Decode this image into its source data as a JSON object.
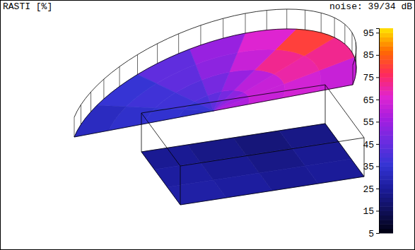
{
  "chart_data": {
    "type": "heatmap",
    "title": "RASTI [%]",
    "annotations": [
      "noise: 39/34 dB"
    ],
    "surfaces": [
      {
        "values": [
          [
            58,
            56,
            52,
            48,
            44,
            40,
            36,
            34
          ],
          [
            62,
            62,
            60,
            54,
            48,
            42,
            38,
            35
          ],
          [
            64,
            70,
            72,
            62,
            52,
            44,
            38,
            34
          ],
          [
            62,
            72,
            80,
            66,
            54,
            44,
            36,
            32
          ]
        ]
      },
      {
        "values": [
          [
            24,
            22,
            20,
            22
          ],
          [
            26,
            24,
            22,
            24
          ],
          [
            27,
            26,
            24,
            25
          ]
        ]
      }
    ],
    "colorbar": {
      "range": [
        5,
        97
      ],
      "ticks": [
        5,
        15,
        25,
        35,
        45,
        55,
        65,
        75,
        85,
        95
      ]
    }
  }
}
